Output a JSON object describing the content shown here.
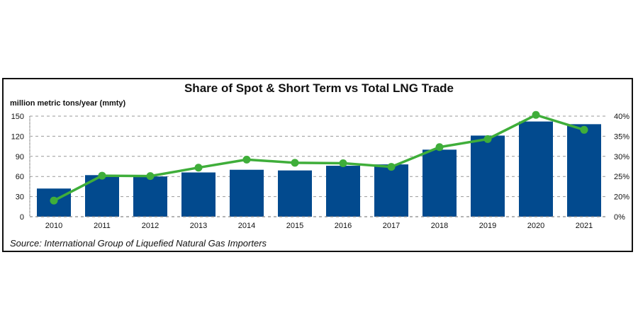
{
  "chart_data": {
    "type": "bar+line",
    "title": "Share of Spot & Short Term vs Total LNG Trade",
    "ylabel": "million metric tons/year (mmty)",
    "source": "Source: International Group of Liquefied Natural Gas Importers",
    "categories": [
      "2010",
      "2011",
      "2012",
      "2013",
      "2014",
      "2015",
      "2016",
      "2017",
      "2018",
      "2019",
      "2020",
      "2021"
    ],
    "series": [
      {
        "type": "bar",
        "axis": "left",
        "color": "#024a8e",
        "values": [
          42,
          62,
          60,
          66,
          70,
          69,
          76,
          78,
          100,
          121,
          142,
          138
        ]
      },
      {
        "type": "line",
        "axis": "right",
        "color": "#3fae3a",
        "values": [
          19,
          25.2,
          25.1,
          27.2,
          29.2,
          28.4,
          28.3,
          27.4,
          32.3,
          34.3,
          40.3,
          36.6
        ]
      }
    ],
    "left_axis": {
      "ylim": [
        0,
        150
      ],
      "ticks": [
        "0",
        "30",
        "60",
        "90",
        "120",
        "150"
      ]
    },
    "right_axis": {
      "ticks": [
        "0%",
        "20%",
        "25%",
        "30%",
        "35%",
        "40%"
      ],
      "tick_values": [
        0,
        20,
        25,
        30,
        35,
        40
      ]
    },
    "grid": true
  }
}
